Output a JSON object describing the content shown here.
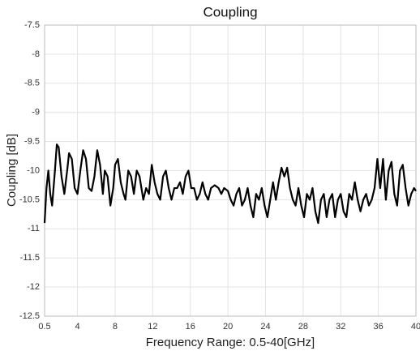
{
  "chart_data": {
    "type": "line",
    "title": "Coupling",
    "x_label": "Frequency Range: 0.5-40[GHz]",
    "y_label": "Coupling [dB]",
    "xlim": [
      0.5,
      40
    ],
    "ylim": [
      -12.5,
      -7.5
    ],
    "xticks": [
      0.5,
      4,
      8,
      12,
      16,
      20,
      24,
      28,
      32,
      36,
      40
    ],
    "yticks": [
      -12.5,
      -12,
      -11.5,
      -11,
      -10.5,
      -10,
      -9.5,
      -9,
      -8.5,
      -8,
      -7.5
    ],
    "grid": true,
    "x": [
      0.5,
      0.7,
      0.9,
      1.1,
      1.3,
      1.6,
      1.8,
      2.0,
      2.3,
      2.6,
      2.9,
      3.1,
      3.4,
      3.7,
      4.0,
      4.3,
      4.6,
      4.9,
      5.2,
      5.5,
      5.8,
      6.1,
      6.4,
      6.7,
      6.9,
      7.2,
      7.5,
      7.8,
      8.0,
      8.3,
      8.6,
      8.9,
      9.1,
      9.4,
      9.7,
      10.0,
      10.3,
      10.6,
      11.0,
      11.3,
      11.6,
      11.9,
      12.2,
      12.5,
      12.8,
      13.1,
      13.4,
      13.7,
      14.0,
      14.3,
      14.6,
      14.9,
      15.2,
      15.5,
      15.8,
      16.1,
      16.4,
      16.7,
      17.0,
      17.3,
      17.6,
      17.9,
      18.2,
      18.6,
      19.0,
      19.3,
      19.6,
      20.0,
      20.3,
      20.6,
      20.9,
      21.2,
      21.5,
      21.8,
      22.1,
      22.4,
      22.7,
      23.0,
      23.3,
      23.6,
      23.9,
      24.2,
      24.5,
      24.8,
      25.1,
      25.4,
      25.7,
      26.0,
      26.3,
      26.6,
      26.9,
      27.2,
      27.5,
      27.8,
      28.1,
      28.4,
      28.7,
      29.0,
      29.3,
      29.6,
      29.9,
      30.2,
      30.5,
      30.8,
      31.1,
      31.4,
      31.7,
      32.0,
      32.3,
      32.6,
      32.9,
      33.2,
      33.5,
      33.8,
      34.1,
      34.4,
      34.7,
      35.0,
      35.3,
      35.6,
      35.9,
      36.2,
      36.5,
      36.8,
      37.1,
      37.4,
      37.7,
      38.0,
      38.3,
      38.6,
      38.9,
      39.2,
      39.5,
      39.8,
      40.0
    ],
    "series": [
      {
        "color": "#000000",
        "values": [
          -10.9,
          -10.3,
          -10.0,
          -10.4,
          -10.6,
          -10.0,
          -9.55,
          -9.6,
          -10.1,
          -10.4,
          -10.0,
          -9.7,
          -9.8,
          -10.3,
          -10.4,
          -10.0,
          -9.65,
          -9.8,
          -10.3,
          -10.35,
          -10.1,
          -9.65,
          -9.9,
          -10.4,
          -10.0,
          -10.1,
          -10.6,
          -10.3,
          -9.9,
          -9.8,
          -10.2,
          -10.4,
          -10.5,
          -10.0,
          -10.1,
          -10.4,
          -10.0,
          -10.1,
          -10.5,
          -10.3,
          -10.4,
          -9.9,
          -10.2,
          -10.4,
          -10.5,
          -10.1,
          -10.0,
          -10.3,
          -10.5,
          -10.3,
          -10.3,
          -10.2,
          -10.4,
          -10.1,
          -10.0,
          -10.3,
          -10.3,
          -10.5,
          -10.4,
          -10.2,
          -10.4,
          -10.5,
          -10.3,
          -10.25,
          -10.3,
          -10.4,
          -10.3,
          -10.35,
          -10.5,
          -10.6,
          -10.4,
          -10.3,
          -10.6,
          -10.5,
          -10.3,
          -10.6,
          -10.8,
          -10.4,
          -10.5,
          -10.3,
          -10.6,
          -10.8,
          -10.5,
          -10.2,
          -10.5,
          -10.2,
          -9.95,
          -10.1,
          -9.95,
          -10.3,
          -10.5,
          -10.6,
          -10.3,
          -10.6,
          -10.8,
          -10.4,
          -10.5,
          -10.3,
          -10.7,
          -10.9,
          -10.5,
          -10.4,
          -10.8,
          -10.5,
          -10.4,
          -10.8,
          -10.5,
          -10.4,
          -10.7,
          -10.8,
          -10.4,
          -10.5,
          -10.2,
          -10.5,
          -10.7,
          -10.5,
          -10.4,
          -10.6,
          -10.5,
          -10.3,
          -9.8,
          -10.3,
          -9.8,
          -10.5,
          -10.0,
          -9.85,
          -10.4,
          -10.6,
          -10.0,
          -9.9,
          -10.3,
          -10.6,
          -10.4,
          -10.3,
          -10.35
        ]
      }
    ]
  }
}
